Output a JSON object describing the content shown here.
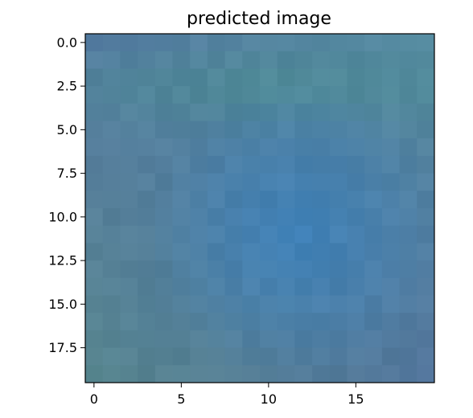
{
  "chart_data": {
    "type": "heatmap",
    "title": "predicted image",
    "rows": 20,
    "cols": 20,
    "xlim": [
      -0.5,
      19.5
    ],
    "ylim": [
      19.5,
      -0.5
    ],
    "xticks": [
      0,
      5,
      10,
      15
    ],
    "xtick_labels": [
      "0",
      "5",
      "10",
      "15"
    ],
    "yticks": [
      0.0,
      2.5,
      5.0,
      7.5,
      10.0,
      12.5,
      15.0,
      17.5
    ],
    "ytick_labels": [
      "0.0",
      "2.5",
      "5.0",
      "7.5",
      "10.0",
      "12.5",
      "15.0",
      "17.5"
    ],
    "grid": false,
    "corner_colors": {
      "top_left": "#5f78a8",
      "top_right": "#5a96a0",
      "bottom_left": "#5f8c78",
      "bottom_right": "#586e9a"
    },
    "edge_color": "#4f7ea0",
    "top_band_color": "#4a9090",
    "center_color": "#3c82be",
    "frame_color": "#000000"
  }
}
